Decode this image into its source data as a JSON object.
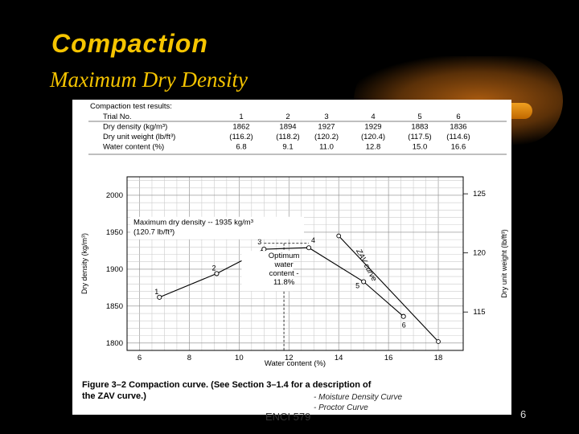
{
  "slide": {
    "title": "Compaction",
    "subtitle": "Maximum Dry Density",
    "footer": "ENCI 579",
    "page_number": "6",
    "colors": {
      "title": "#f5c400",
      "background": "#000000",
      "accent": "#e08a10"
    }
  },
  "table": {
    "caption": "Compaction test results:",
    "rows": [
      {
        "label": "Trial No.",
        "cells": [
          "1",
          "2",
          "3",
          "4",
          "5",
          "6"
        ]
      },
      {
        "label": "Dry density (kg/m³)",
        "cells": [
          "1862",
          "1894",
          "1927",
          "1929",
          "1883",
          "1836"
        ]
      },
      {
        "label": "Dry unit weight (lb/ft³)",
        "cells": [
          "(116.2)",
          "(118.2)",
          "(120.2)",
          "(120.4)",
          "(117.5)",
          "(114.6)"
        ]
      },
      {
        "label": "Water content (%)",
        "cells": [
          "6.8",
          "9.1",
          "11.0",
          "12.8",
          "15.0",
          "16.6"
        ]
      }
    ]
  },
  "chart_data": {
    "type": "line",
    "xlabel": "Water content (%)",
    "ylabel": "Dry density (kg/m³)",
    "y2label": "Dry unit weight (lb/ft³)",
    "xlim": [
      5.5,
      19
    ],
    "ylim": [
      1790,
      2025
    ],
    "xticks": [
      "6",
      "8",
      "10",
      "12",
      "14",
      "16",
      "18"
    ],
    "yticks": [
      "1800",
      "1850",
      "1900",
      "1950",
      "2000"
    ],
    "y2ticks": [
      {
        "value": 1842,
        "label": "115"
      },
      {
        "value": 1922,
        "label": "120"
      },
      {
        "value": 2002,
        "label": "125"
      }
    ],
    "grid": true,
    "series": [
      {
        "x": [
          6.8,
          9.1,
          11.0,
          12.8,
          15.0,
          16.6
        ],
        "y": [
          1862,
          1894,
          1927,
          1929,
          1883,
          1836
        ],
        "point_labels": [
          "1",
          "2",
          "3",
          "4",
          "5",
          "6"
        ]
      },
      {
        "x": [
          14.0,
          18.0
        ],
        "y": [
          1945,
          1802
        ]
      }
    ],
    "annotations": [
      {
        "text": "Maximum dry density -- 1935 kg/m³"
      },
      {
        "text": "(120.7 lb/ft³)"
      },
      {
        "text": "Optimum"
      },
      {
        "text": "water"
      },
      {
        "text": "content -"
      },
      {
        "text": "11.8%"
      },
      {
        "text": "ZAV curve"
      }
    ],
    "caption": "Figure 3–2   Compaction curve. (See Section 3–1.4 for a description of the ZAV curve.)",
    "handwritten_notes": [
      "- Moisture Density Curve",
      "- Proctor Curve"
    ]
  }
}
